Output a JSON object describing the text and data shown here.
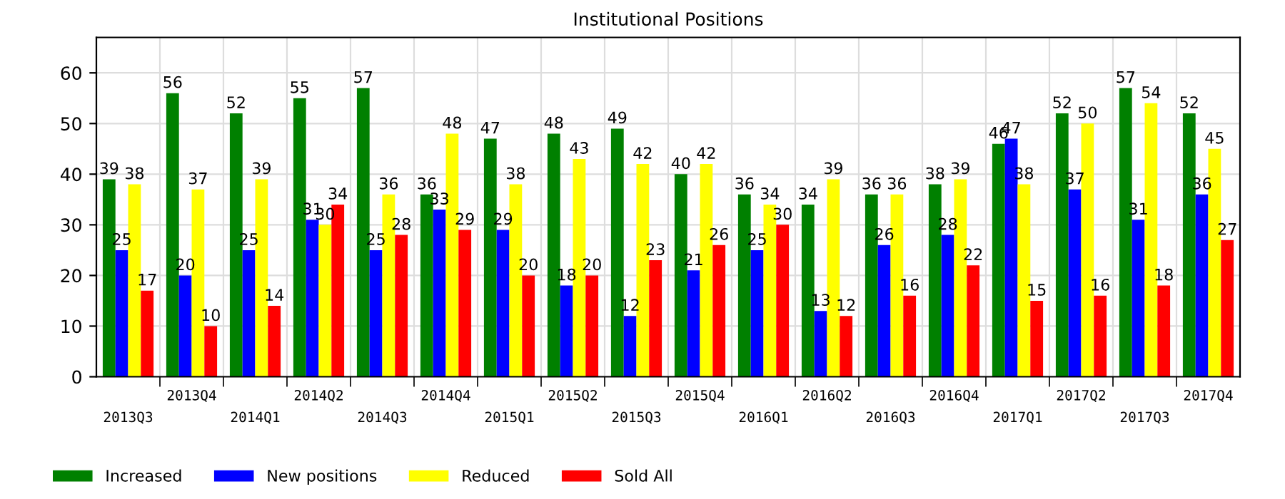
{
  "chart_data": {
    "type": "bar",
    "title": "Institutional Positions",
    "categories": [
      "2013Q3",
      "2013Q4",
      "2014Q1",
      "2014Q2",
      "2014Q3",
      "2014Q4",
      "2015Q1",
      "2015Q2",
      "2015Q3",
      "2015Q4",
      "2016Q1",
      "2016Q2",
      "2016Q3",
      "2016Q4",
      "2017Q1",
      "2017Q2",
      "2017Q3",
      "2017Q4"
    ],
    "series": [
      {
        "name": "Increased",
        "color": "#008000",
        "values": [
          39,
          56,
          52,
          55,
          57,
          36,
          47,
          48,
          49,
          40,
          36,
          34,
          36,
          38,
          46,
          52,
          57,
          52
        ]
      },
      {
        "name": "New positions",
        "color": "#0000ff",
        "values": [
          25,
          20,
          25,
          31,
          25,
          33,
          29,
          18,
          12,
          21,
          25,
          13,
          26,
          28,
          47,
          37,
          31,
          36
        ]
      },
      {
        "name": "Reduced",
        "color": "#ffff00",
        "values": [
          38,
          37,
          39,
          30,
          36,
          48,
          38,
          43,
          42,
          42,
          34,
          39,
          36,
          39,
          38,
          50,
          54,
          45
        ]
      },
      {
        "name": "Sold All",
        "color": "#ff0000",
        "values": [
          17,
          10,
          14,
          34,
          28,
          29,
          20,
          20,
          23,
          26,
          30,
          12,
          16,
          22,
          15,
          16,
          18,
          27
        ]
      }
    ],
    "ylim": [
      0,
      67
    ],
    "yticks": [
      0,
      10,
      20,
      30,
      40,
      50,
      60
    ],
    "grid": true,
    "legend": "bottom left",
    "data_labels": true
  }
}
